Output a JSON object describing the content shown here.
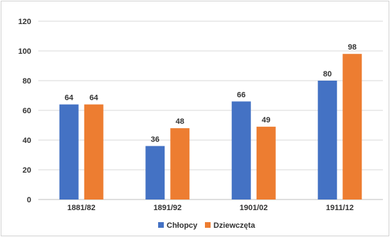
{
  "chart_data": {
    "type": "bar",
    "categories": [
      "1881/82",
      "1891/92",
      "1901/02",
      "1911/12"
    ],
    "series": [
      {
        "name": "Chłopcy",
        "values": [
          64,
          36,
          66,
          80
        ],
        "color": "#4472c4"
      },
      {
        "name": "Dziewczęta",
        "values": [
          64,
          48,
          49,
          98
        ],
        "color": "#ed7d31"
      }
    ],
    "ylim": [
      0,
      120
    ],
    "yticks": [
      0,
      20,
      40,
      60,
      80,
      100,
      120
    ],
    "grid": true,
    "legend": "bottom",
    "data_labels": true
  }
}
